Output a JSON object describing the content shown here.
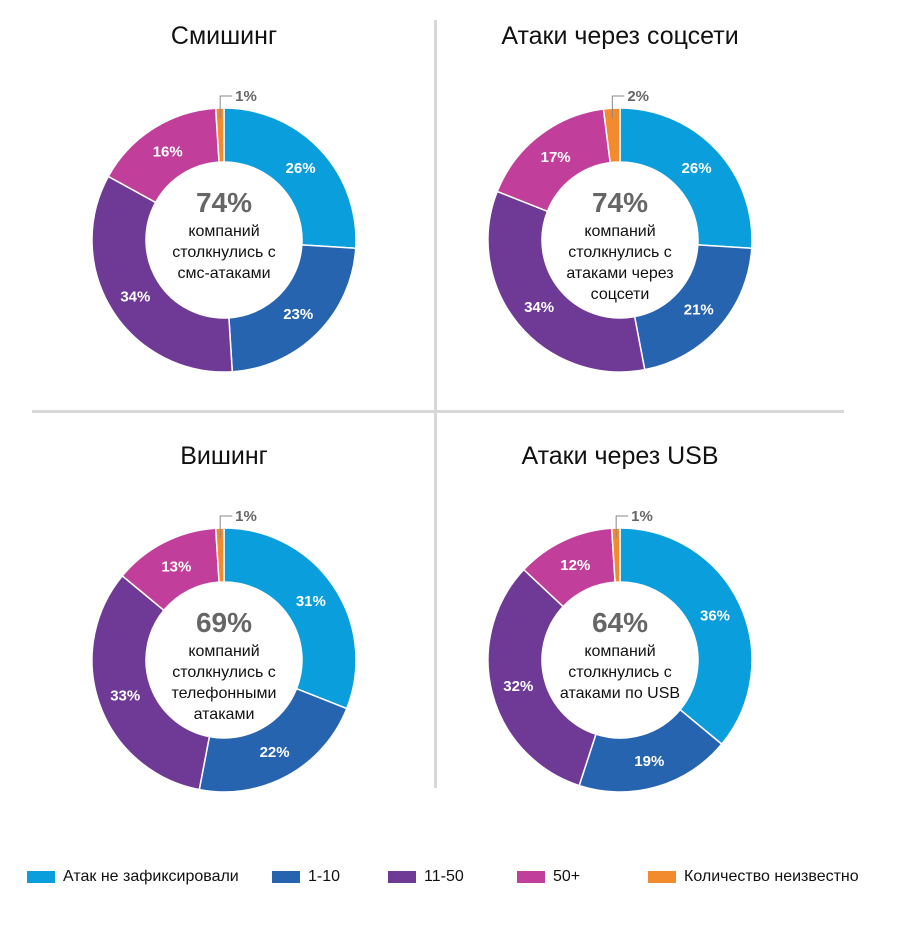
{
  "colors": {
    "none": "#0a9edc",
    "r1_10": "#2764b0",
    "r11_50": "#6f3a96",
    "r50p": "#c13f9a",
    "unknown": "#f28a2e"
  },
  "chart_data": [
    {
      "type": "pie",
      "title": "Смишинг",
      "center_value": "74%",
      "center_text": [
        "компаний",
        "столкнулись с",
        "смс-атаками"
      ],
      "categories": [
        "Атак не зафиксировали",
        "1-10",
        "11-50",
        "50+",
        "Количество неизвестно"
      ],
      "values": [
        26,
        23,
        34,
        16,
        1
      ]
    },
    {
      "type": "pie",
      "title": "Атаки через соцсети",
      "center_value": "74%",
      "center_text": [
        "компаний",
        "столкнулись с",
        "атаками через",
        "соцсети"
      ],
      "categories": [
        "Атак не зафиксировали",
        "1-10",
        "11-50",
        "50+",
        "Количество неизвестно"
      ],
      "values": [
        26,
        21,
        34,
        17,
        2
      ]
    },
    {
      "type": "pie",
      "title": "Вишинг",
      "center_value": "69%",
      "center_text": [
        "компаний",
        "столкнулись с",
        "телефонными",
        "атаками"
      ],
      "categories": [
        "Атак не зафиксировали",
        "1-10",
        "11-50",
        "50+",
        "Количество неизвестно"
      ],
      "values": [
        31,
        22,
        33,
        13,
        1
      ]
    },
    {
      "type": "pie",
      "title": "Атаки через USB",
      "center_value": "64%",
      "center_text": [
        "компаний",
        "столкнулись с",
        "атаками по USB"
      ],
      "categories": [
        "Атак не зафиксировали",
        "1-10",
        "11-50",
        "50+",
        "Количество неизвестно"
      ],
      "values": [
        36,
        19,
        32,
        12,
        1
      ]
    }
  ],
  "legend": [
    {
      "label": "Атак не зафиксировали",
      "color_key": "none"
    },
    {
      "label": "1-10",
      "color_key": "r1_10"
    },
    {
      "label": "11-50",
      "color_key": "r11_50"
    },
    {
      "label": "50+",
      "color_key": "r50p"
    },
    {
      "label": "Количество неизвестно",
      "color_key": "unknown"
    }
  ]
}
